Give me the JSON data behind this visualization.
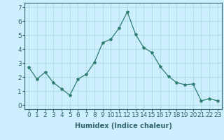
{
  "x": [
    0,
    1,
    2,
    3,
    4,
    5,
    6,
    7,
    8,
    9,
    10,
    11,
    12,
    13,
    14,
    15,
    16,
    17,
    18,
    19,
    20,
    21,
    22,
    23
  ],
  "y": [
    2.7,
    1.85,
    2.35,
    1.6,
    1.15,
    0.7,
    1.85,
    2.2,
    3.05,
    4.45,
    4.7,
    5.5,
    6.65,
    5.05,
    4.1,
    3.75,
    2.75,
    2.05,
    1.6,
    1.45,
    1.5,
    0.3,
    0.45,
    0.3
  ],
  "line_color": "#2e7d6e",
  "marker": "*",
  "marker_size": 3,
  "bg_color": "#cceeff",
  "grid_color": "#aadddd",
  "xlabel": "Humidex (Indice chaleur)",
  "xlim": [
    -0.5,
    23.5
  ],
  "ylim": [
    -0.3,
    7.3
  ],
  "yticks": [
    0,
    1,
    2,
    3,
    4,
    5,
    6,
    7
  ],
  "xticks": [
    0,
    1,
    2,
    3,
    4,
    5,
    6,
    7,
    8,
    9,
    10,
    11,
    12,
    13,
    14,
    15,
    16,
    17,
    18,
    19,
    20,
    21,
    22,
    23
  ],
  "xlabel_fontsize": 7,
  "tick_fontsize": 6.5,
  "spine_color": "#336666"
}
